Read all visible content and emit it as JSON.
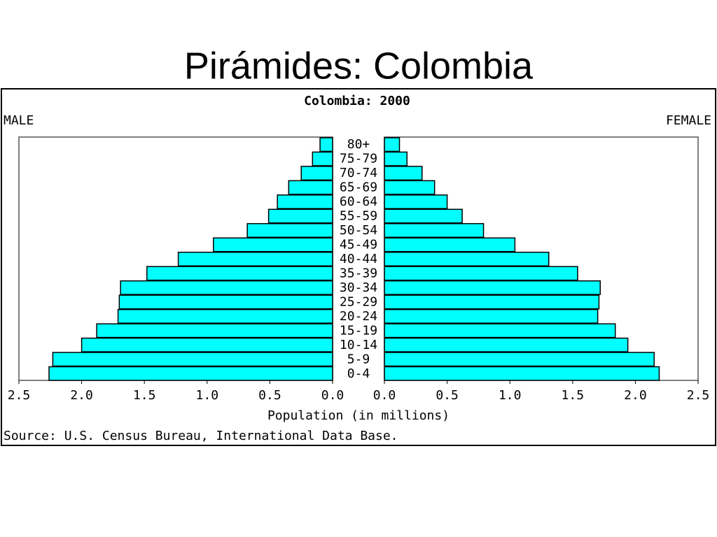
{
  "heading": "Pirámides: Colombia",
  "chart_data": {
    "type": "pyramid",
    "title": "Colombia: 2000",
    "xlabel": "Population (in millions)",
    "source": "Source: U.S. Census Bureau, International Data Base.",
    "categories": [
      "80+",
      "75-79",
      "70-74",
      "65-69",
      "60-64",
      "55-59",
      "50-54",
      "45-49",
      "40-44",
      "35-39",
      "30-34",
      "25-29",
      "20-24",
      "15-19",
      "10-14",
      "5-9",
      "0-4"
    ],
    "series": [
      {
        "name": "MALE",
        "color": "#00ffff",
        "values": [
          0.1,
          0.16,
          0.25,
          0.35,
          0.44,
          0.51,
          0.68,
          0.95,
          1.23,
          1.48,
          1.69,
          1.7,
          1.71,
          1.88,
          2.0,
          2.23,
          2.26
        ]
      },
      {
        "name": "FEMALE",
        "color": "#00ffff",
        "values": [
          0.12,
          0.18,
          0.3,
          0.4,
          0.5,
          0.62,
          0.79,
          1.04,
          1.31,
          1.54,
          1.72,
          1.71,
          1.7,
          1.84,
          1.94,
          2.15,
          2.19
        ]
      }
    ],
    "xlim": [
      0,
      2.5
    ],
    "xticks": [
      {
        "value": 0,
        "label": "0.0"
      },
      {
        "value": 0.5,
        "label": "0.5"
      },
      {
        "value": 1,
        "label": "1.0"
      },
      {
        "value": 1.5,
        "label": "1.5"
      },
      {
        "value": 2,
        "label": "2.0"
      },
      {
        "value": 2.5,
        "label": "2.5"
      }
    ],
    "grid": false
  }
}
